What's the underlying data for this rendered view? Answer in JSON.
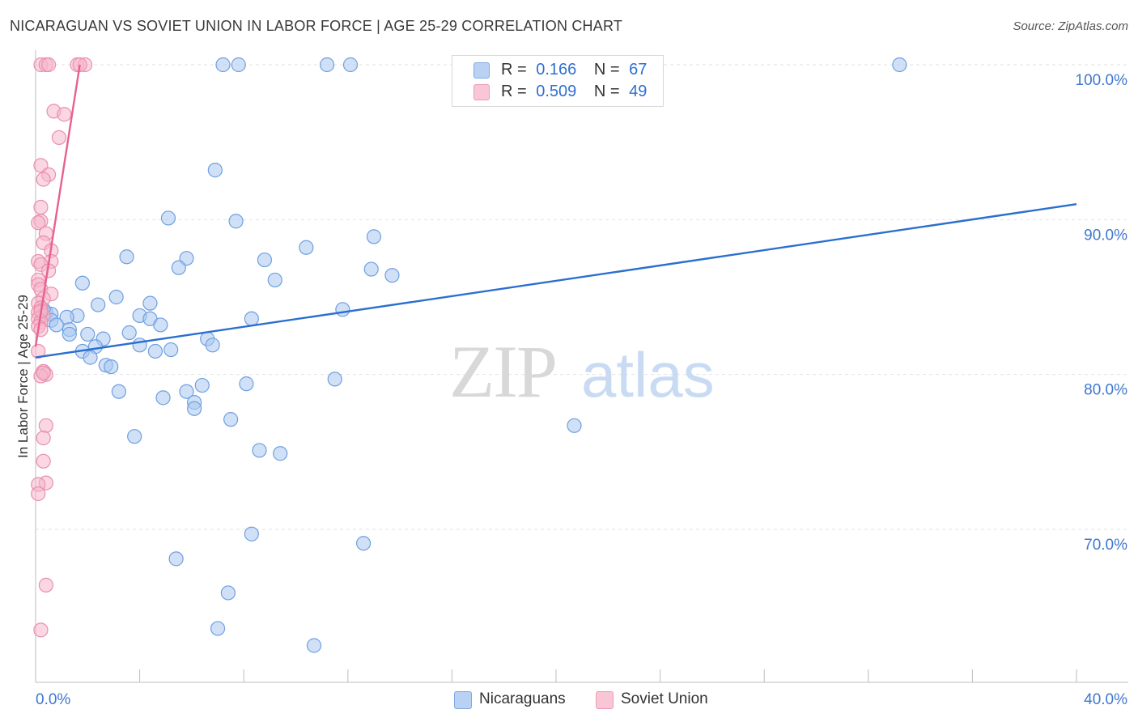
{
  "title": "NICARAGUAN VS SOVIET UNION IN LABOR FORCE | AGE 25-29 CORRELATION CHART",
  "source": "Source: ZipAtlas.com",
  "watermark": {
    "zip": "ZIP",
    "atlas": "atlas"
  },
  "legend_top": {
    "rows": [
      {
        "r_label": "R =",
        "r_value": "0.166",
        "n_label": "N =",
        "n_value": "67",
        "color": "#a9c8f0"
      },
      {
        "r_label": "R =",
        "r_value": "0.509",
        "n_label": "N =",
        "n_value": "49",
        "color": "#f5b7cb"
      }
    ]
  },
  "chart_data": {
    "type": "scatter",
    "title": "NICARAGUAN VS SOVIET UNION IN LABOR FORCE | AGE 25-29 CORRELATION CHART",
    "xlabel": "",
    "ylabel": "In Labor Force | Age 25-29",
    "xlim": [
      0,
      40
    ],
    "ylim": [
      61.5,
      101
    ],
    "x_tick_labels": [
      "0.0%",
      "40.0%"
    ],
    "y_ticks": [
      {
        "value": 70,
        "label": "70.0%"
      },
      {
        "value": 80,
        "label": "80.0%"
      },
      {
        "value": 90,
        "label": "90.0%"
      },
      {
        "value": 100,
        "label": "100.0%"
      }
    ],
    "series": [
      {
        "name": "Nicaraguans",
        "color": "#a9c8f0",
        "stroke": "#6f9fe0",
        "trend": {
          "x": [
            0,
            40
          ],
          "y": [
            81.1,
            91.0
          ],
          "color": "#2a6fd0"
        },
        "points": [
          [
            7.2,
            100
          ],
          [
            7.8,
            100
          ],
          [
            11.2,
            100
          ],
          [
            12.1,
            100
          ],
          [
            33.2,
            100
          ],
          [
            6.9,
            93.2
          ],
          [
            5.1,
            90.1
          ],
          [
            7.7,
            89.9
          ],
          [
            13.0,
            88.9
          ],
          [
            10.4,
            88.2
          ],
          [
            3.5,
            87.6
          ],
          [
            5.8,
            87.5
          ],
          [
            8.8,
            87.4
          ],
          [
            5.5,
            86.9
          ],
          [
            12.9,
            86.8
          ],
          [
            13.7,
            86.4
          ],
          [
            9.2,
            86.1
          ],
          [
            1.8,
            85.9
          ],
          [
            3.1,
            85.0
          ],
          [
            4.4,
            84.6
          ],
          [
            2.4,
            84.5
          ],
          [
            11.8,
            84.2
          ],
          [
            0.4,
            84.0
          ],
          [
            1.6,
            83.8
          ],
          [
            0.6,
            83.9
          ],
          [
            1.2,
            83.7
          ],
          [
            4.0,
            83.8
          ],
          [
            4.4,
            83.6
          ],
          [
            8.3,
            83.6
          ],
          [
            0.6,
            83.5
          ],
          [
            0.8,
            83.2
          ],
          [
            4.8,
            83.2
          ],
          [
            1.3,
            82.9
          ],
          [
            3.6,
            82.7
          ],
          [
            2.0,
            82.6
          ],
          [
            1.3,
            82.6
          ],
          [
            2.6,
            82.3
          ],
          [
            6.6,
            82.3
          ],
          [
            6.8,
            81.9
          ],
          [
            4.0,
            81.9
          ],
          [
            2.3,
            81.8
          ],
          [
            5.2,
            81.6
          ],
          [
            1.8,
            81.5
          ],
          [
            4.6,
            81.5
          ],
          [
            2.1,
            81.1
          ],
          [
            2.7,
            80.6
          ],
          [
            2.9,
            80.5
          ],
          [
            11.5,
            79.7
          ],
          [
            8.1,
            79.4
          ],
          [
            6.4,
            79.3
          ],
          [
            5.8,
            78.9
          ],
          [
            3.2,
            78.9
          ],
          [
            4.9,
            78.5
          ],
          [
            6.1,
            78.2
          ],
          [
            6.1,
            77.8
          ],
          [
            7.5,
            77.1
          ],
          [
            20.7,
            76.7
          ],
          [
            3.8,
            76.0
          ],
          [
            8.6,
            75.1
          ],
          [
            9.4,
            74.9
          ],
          [
            8.3,
            69.7
          ],
          [
            12.6,
            69.1
          ],
          [
            5.4,
            68.1
          ],
          [
            7.4,
            65.9
          ],
          [
            7.0,
            63.6
          ],
          [
            10.7,
            62.5
          ],
          [
            0.3,
            84.2
          ]
        ]
      },
      {
        "name": "Soviet Union",
        "color": "#f5b7cb",
        "stroke": "#e98fae",
        "trend": {
          "x": [
            0,
            1.7
          ],
          "y": [
            81.8,
            100.0
          ],
          "color": "#e8618f"
        },
        "points": [
          [
            0.2,
            100
          ],
          [
            0.4,
            100
          ],
          [
            0.5,
            100
          ],
          [
            1.6,
            100
          ],
          [
            1.9,
            100
          ],
          [
            1.7,
            100
          ],
          [
            0.7,
            97.0
          ],
          [
            1.1,
            96.8
          ],
          [
            0.9,
            95.3
          ],
          [
            0.2,
            93.5
          ],
          [
            0.5,
            92.9
          ],
          [
            0.3,
            92.6
          ],
          [
            0.2,
            90.8
          ],
          [
            0.2,
            89.9
          ],
          [
            0.1,
            89.8
          ],
          [
            0.4,
            89.1
          ],
          [
            0.3,
            88.5
          ],
          [
            0.6,
            88.0
          ],
          [
            0.1,
            87.3
          ],
          [
            0.6,
            87.3
          ],
          [
            0.2,
            87.1
          ],
          [
            0.5,
            86.7
          ],
          [
            0.1,
            86.1
          ],
          [
            0.1,
            85.8
          ],
          [
            0.2,
            85.5
          ],
          [
            0.6,
            85.2
          ],
          [
            0.3,
            84.9
          ],
          [
            0.1,
            84.6
          ],
          [
            0.2,
            84.3
          ],
          [
            0.1,
            84.0
          ],
          [
            0.3,
            83.8
          ],
          [
            0.1,
            83.6
          ],
          [
            0.2,
            83.4
          ],
          [
            0.1,
            83.1
          ],
          [
            0.2,
            82.9
          ],
          [
            0.1,
            81.5
          ],
          [
            0.3,
            80.2
          ],
          [
            0.4,
            80.0
          ],
          [
            0.2,
            79.9
          ],
          [
            0.4,
            76.7
          ],
          [
            0.3,
            75.9
          ],
          [
            0.3,
            74.4
          ],
          [
            0.4,
            73.0
          ],
          [
            0.1,
            72.9
          ],
          [
            0.1,
            72.3
          ],
          [
            0.4,
            66.4
          ],
          [
            0.2,
            63.5
          ],
          [
            0.3,
            80.1
          ],
          [
            0.2,
            84.1
          ]
        ]
      }
    ]
  }
}
